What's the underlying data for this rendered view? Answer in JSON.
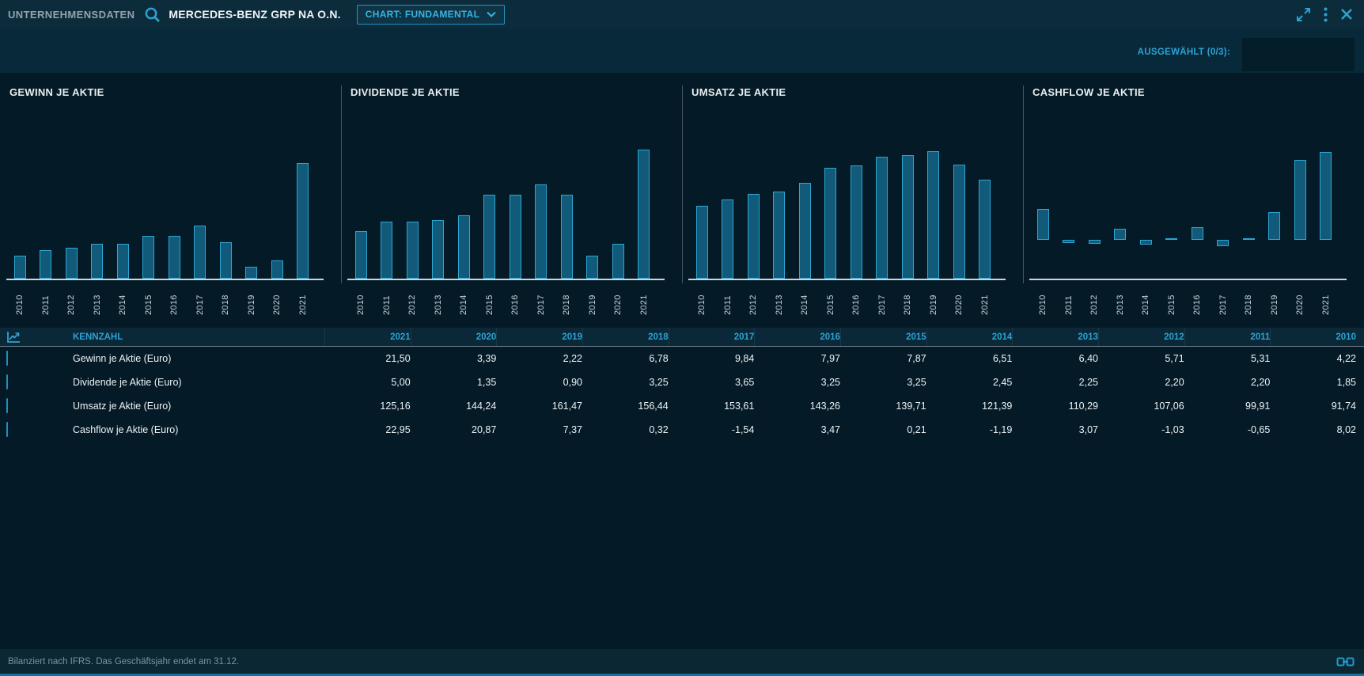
{
  "topbar": {
    "app_title": "UNTERNEHMENSDATEN",
    "company": "MERCEDES-BENZ GRP NA O.N.",
    "chart_select_label": "CHART: FUNDAMENTAL",
    "icons": [
      "search-icon",
      "chevron-down-icon",
      "expand-icon",
      "kebab-menu-icon",
      "close-icon"
    ]
  },
  "selection_bar": {
    "selected_label": "AUSGEWÄHLT (0/3):"
  },
  "chart_data": [
    {
      "type": "bar",
      "title": "GEWINN JE AKTIE",
      "categories": [
        "2010",
        "2011",
        "2012",
        "2013",
        "2014",
        "2015",
        "2016",
        "2017",
        "2018",
        "2019",
        "2020",
        "2021"
      ],
      "values": [
        4.22,
        5.31,
        5.71,
        6.4,
        6.51,
        7.87,
        7.97,
        9.84,
        6.78,
        2.22,
        3.39,
        21.5
      ],
      "xlabel": "",
      "ylabel": "",
      "ylim": [
        0,
        25
      ],
      "grid": false,
      "legend": false
    },
    {
      "type": "bar",
      "title": "DIVIDENDE JE AKTIE",
      "categories": [
        "2010",
        "2011",
        "2012",
        "2013",
        "2014",
        "2015",
        "2016",
        "2017",
        "2018",
        "2019",
        "2020",
        "2021"
      ],
      "values": [
        1.85,
        2.2,
        2.2,
        2.25,
        2.45,
        3.25,
        3.25,
        3.65,
        3.25,
        0.9,
        1.35,
        5.0
      ],
      "xlabel": "",
      "ylabel": "",
      "ylim": [
        0,
        5.2
      ],
      "grid": false,
      "legend": false
    },
    {
      "type": "bar",
      "title": "UMSATZ JE AKTIE",
      "categories": [
        "2010",
        "2011",
        "2012",
        "2013",
        "2014",
        "2015",
        "2016",
        "2017",
        "2018",
        "2019",
        "2020",
        "2021"
      ],
      "values": [
        91.74,
        99.91,
        107.06,
        110.29,
        121.39,
        139.71,
        143.26,
        153.61,
        156.44,
        161.47,
        144.24,
        125.16
      ],
      "xlabel": "",
      "ylabel": "",
      "ylim": [
        0,
        170
      ],
      "grid": false,
      "legend": false
    },
    {
      "type": "bar",
      "title": "CASHFLOW JE AKTIE",
      "categories": [
        "2010",
        "2011",
        "2012",
        "2013",
        "2014",
        "2015",
        "2016",
        "2017",
        "2018",
        "2019",
        "2020",
        "2021"
      ],
      "values": [
        8.02,
        -0.65,
        -1.03,
        3.07,
        -1.19,
        0.21,
        3.47,
        -1.54,
        0.32,
        7.37,
        20.87,
        22.95
      ],
      "xlabel": "",
      "ylabel": "",
      "ylim": [
        -10,
        25
      ],
      "grid": false,
      "legend": false
    }
  ],
  "table": {
    "columns": [
      "KENNZAHL",
      "2021",
      "2020",
      "2019",
      "2018",
      "2017",
      "2016",
      "2015",
      "2014",
      "2013",
      "2012",
      "2011",
      "2010"
    ],
    "rows": [
      {
        "label": "Gewinn je Aktie (Euro)",
        "values": [
          "21,50",
          "3,39",
          "2,22",
          "6,78",
          "9,84",
          "7,97",
          "7,87",
          "6,51",
          "6,40",
          "5,71",
          "5,31",
          "4,22"
        ]
      },
      {
        "label": "Dividende je Aktie (Euro)",
        "values": [
          "5,00",
          "1,35",
          "0,90",
          "3,25",
          "3,65",
          "3,25",
          "3,25",
          "2,45",
          "2,25",
          "2,20",
          "2,20",
          "1,85"
        ]
      },
      {
        "label": "Umsatz je Aktie (Euro)",
        "values": [
          "125,16",
          "144,24",
          "161,47",
          "156,44",
          "153,61",
          "143,26",
          "139,71",
          "121,39",
          "110,29",
          "107,06",
          "99,91",
          "91,74"
        ]
      },
      {
        "label": "Cashflow je Aktie (Euro)",
        "values": [
          "22,95",
          "20,87",
          "7,37",
          "0,32",
          "-1,54",
          "3,47",
          "0,21",
          "-1,19",
          "3,07",
          "-1,03",
          "-0,65",
          "8,02"
        ]
      }
    ]
  },
  "footer": {
    "note": "Bilanziert nach IFRS. Das Geschäftsjahr endet am 31.12.",
    "logo_icon": "linked-squares-logo-icon"
  },
  "colors": {
    "accent": "#2ba3d4",
    "bar_fill": "#115a79",
    "bar_stroke": "#2da6d4",
    "background": "#041b27",
    "topbar_background": "#0d2c3b",
    "selection_background": "#08293a",
    "axis": "#ccd6da"
  }
}
